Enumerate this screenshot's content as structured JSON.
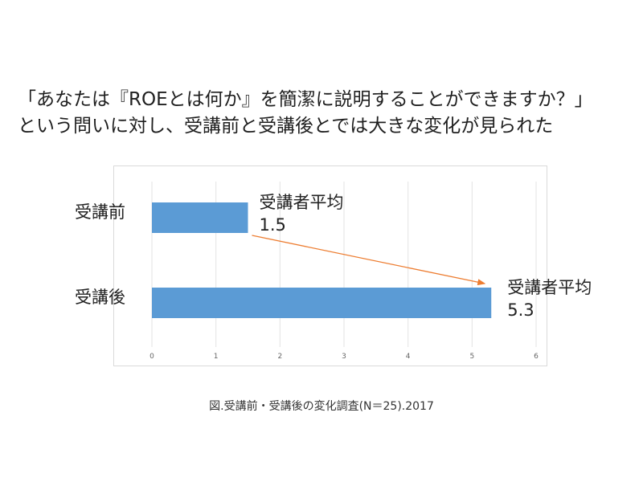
{
  "headline": {
    "line1": "「あなたは『ROEとは何か』を簡潔に説明することができますか？」",
    "line2": "という問いに対し、受講前と受講後とでは大きな変化が見られた"
  },
  "chart_data": {
    "type": "bar",
    "orientation": "horizontal",
    "categories": [
      "受講前",
      "受講後"
    ],
    "values": [
      1.5,
      5.3
    ],
    "data_labels": [
      {
        "line1": "受講者平均",
        "line2": "1.5"
      },
      {
        "line1": "受講者平均",
        "line2": "5.3"
      }
    ],
    "xlim": [
      0,
      6
    ],
    "xticks": [
      "0",
      "1",
      "2",
      "3",
      "4",
      "5",
      "6"
    ],
    "grid": true,
    "bar_color": "#5b9bd5",
    "arrow_color": "#ed7d31",
    "annotation": "arrow from 受講前 bar end to 受講後 bar end"
  },
  "caption": "図.受講前・受講後の変化調査(N＝25).2017"
}
